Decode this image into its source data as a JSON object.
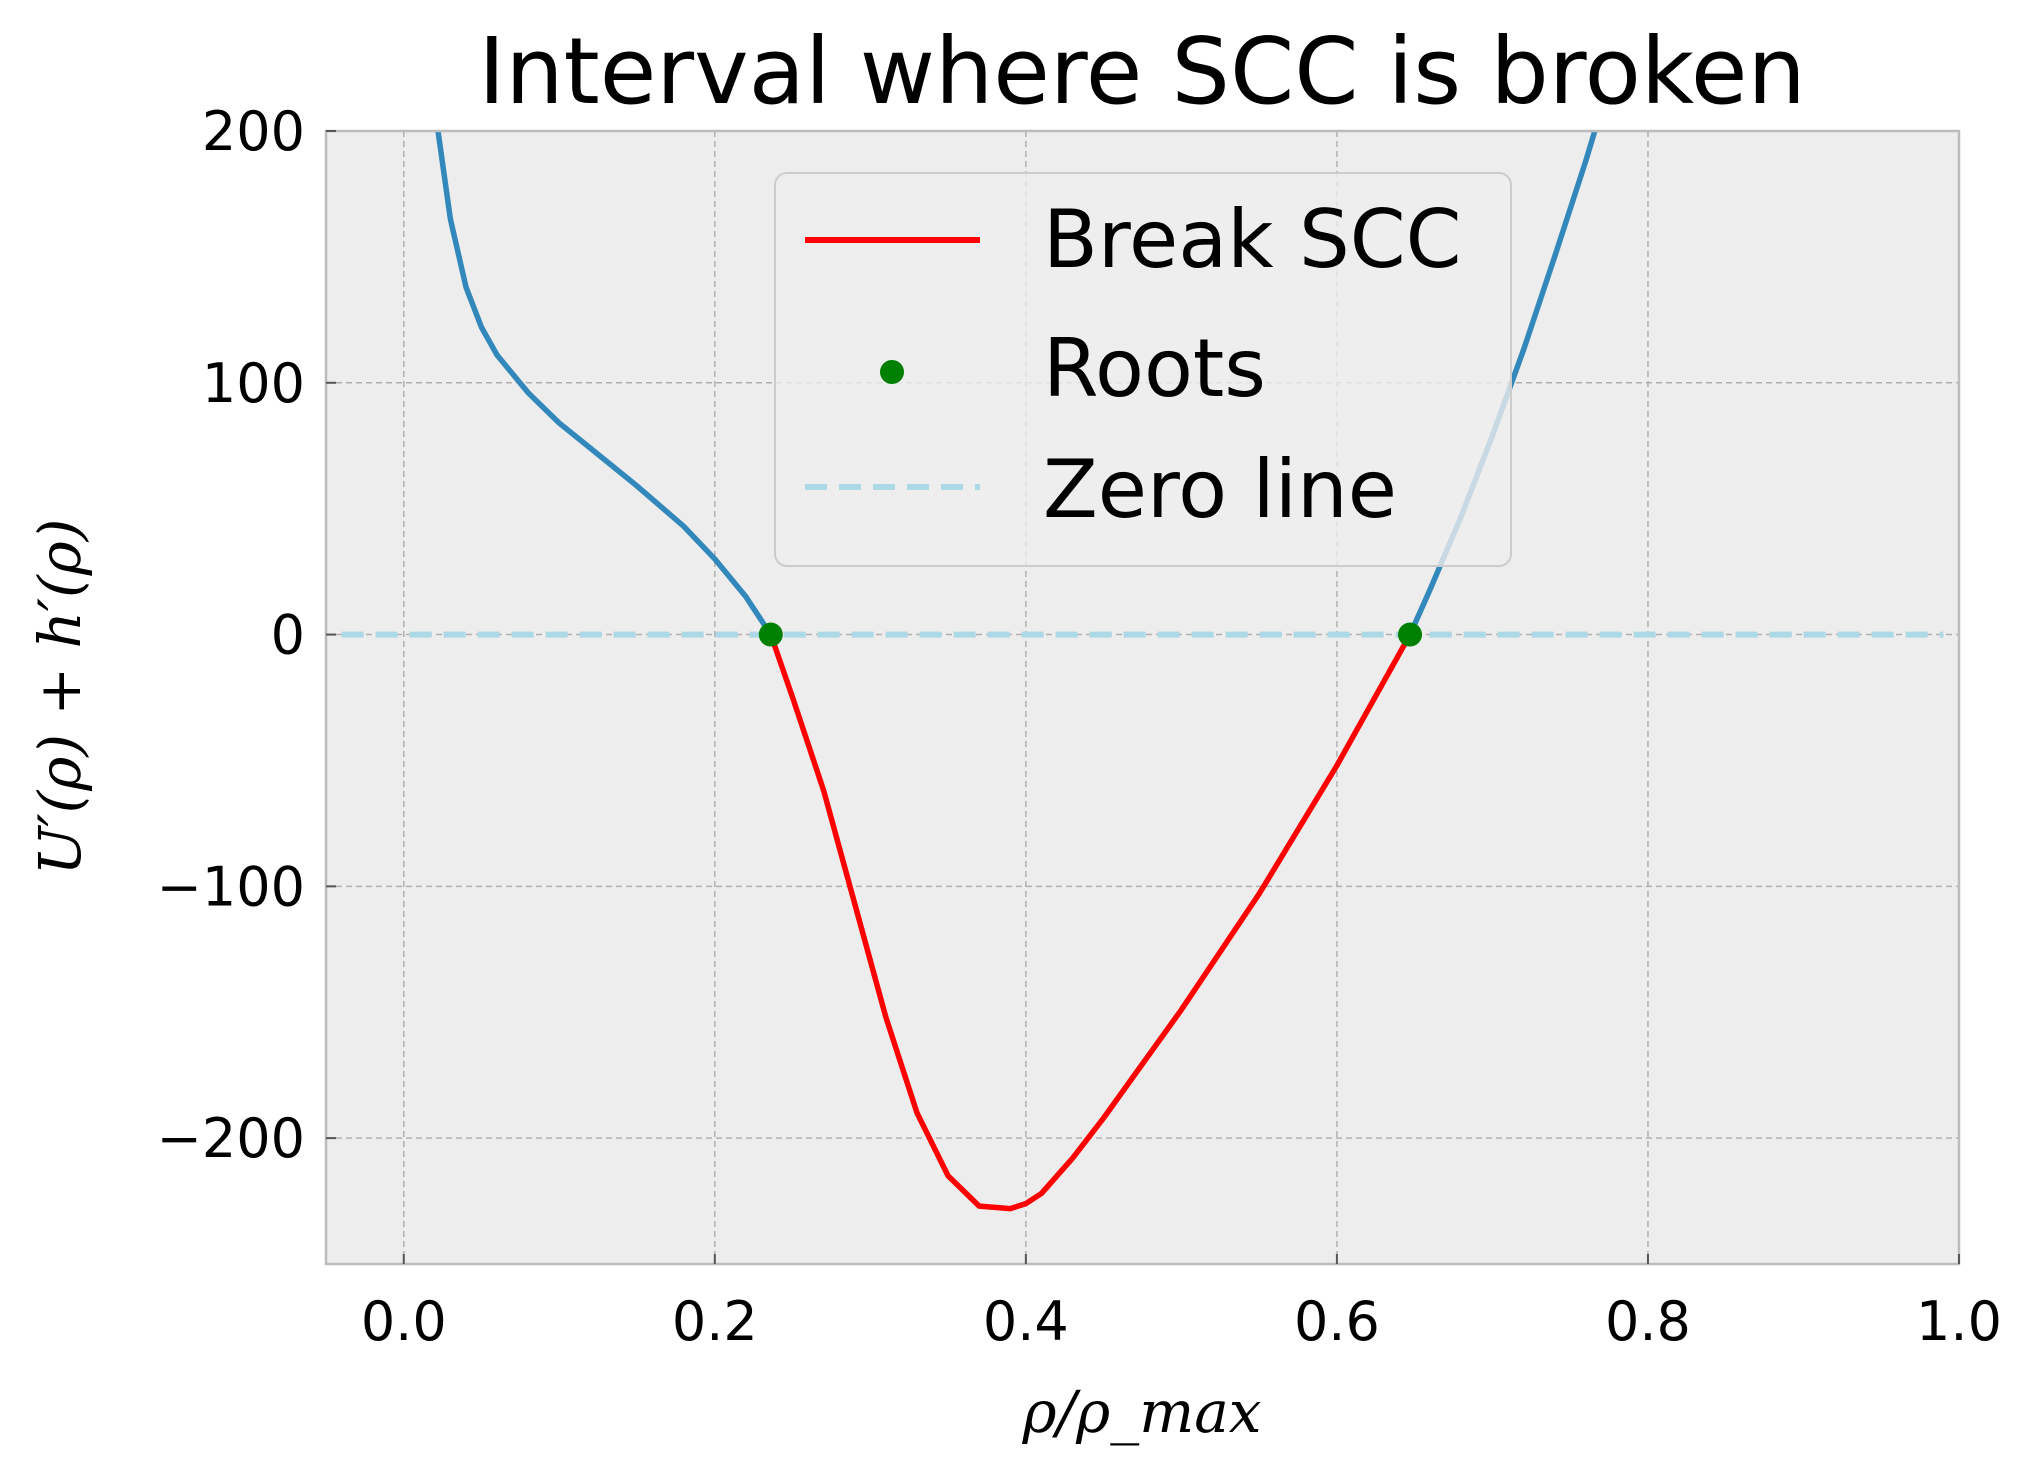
{
  "chart_data": {
    "type": "line",
    "title": "Interval where SCC is broken",
    "xlabel": "ρ/ρ_max",
    "ylabel": "U′(ρ) + h′(ρ)",
    "xlim": [
      -0.05,
      1.0
    ],
    "ylim": [
      -250,
      200
    ],
    "xticks": [
      0.0,
      0.2,
      0.4,
      0.6,
      0.8,
      1.0
    ],
    "xtick_labels": [
      "0.0",
      "0.2",
      "0.4",
      "0.6",
      "0.8",
      "1.0"
    ],
    "yticks": [
      -200,
      -100,
      0,
      100,
      200
    ],
    "ytick_labels": [
      "−200",
      "−100",
      "0",
      "100",
      "200"
    ],
    "grid": true,
    "legend_position": "upper-center",
    "colors": {
      "curve": "#3388bb",
      "break": "#ff0000",
      "roots": "#008000",
      "zero": "#add8e6",
      "plot_bg": "#ededed",
      "grid": "#b0b0b0"
    },
    "series": [
      {
        "name": "",
        "style": "line",
        "color": "#3388bb",
        "x": [
          0.022,
          0.03,
          0.04,
          0.05,
          0.06,
          0.08,
          0.1,
          0.12,
          0.15,
          0.18,
          0.2,
          0.22,
          0.236
        ],
        "y": [
          200,
          165,
          138,
          122,
          111,
          96,
          84,
          74,
          59,
          43,
          30,
          15,
          0
        ]
      },
      {
        "name": "",
        "style": "line",
        "color": "#3388bb",
        "x": [
          0.647,
          0.66,
          0.68,
          0.7,
          0.72,
          0.74,
          0.76,
          0.778
        ],
        "y": [
          0,
          18,
          47,
          79,
          113,
          150,
          188,
          225
        ]
      },
      {
        "name": "Break SCC",
        "style": "line",
        "color": "#ff0000",
        "x": [
          0.236,
          0.25,
          0.27,
          0.29,
          0.31,
          0.33,
          0.35,
          0.37,
          0.39,
          0.4,
          0.41,
          0.43,
          0.45,
          0.5,
          0.55,
          0.6,
          0.647
        ],
        "y": [
          0,
          -25,
          -62,
          -107,
          -152,
          -190,
          -215,
          -227,
          -228,
          -226,
          -222,
          -208,
          -192,
          -149,
          -103,
          -52,
          0
        ]
      },
      {
        "name": "Roots",
        "style": "markers",
        "color": "#008000",
        "x": [
          0.236,
          0.647
        ],
        "y": [
          0,
          0
        ]
      },
      {
        "name": "Zero line",
        "style": "dashed",
        "color": "#add8e6",
        "x": [
          -0.04,
          0.99
        ],
        "y": [
          0,
          0
        ]
      }
    ]
  }
}
